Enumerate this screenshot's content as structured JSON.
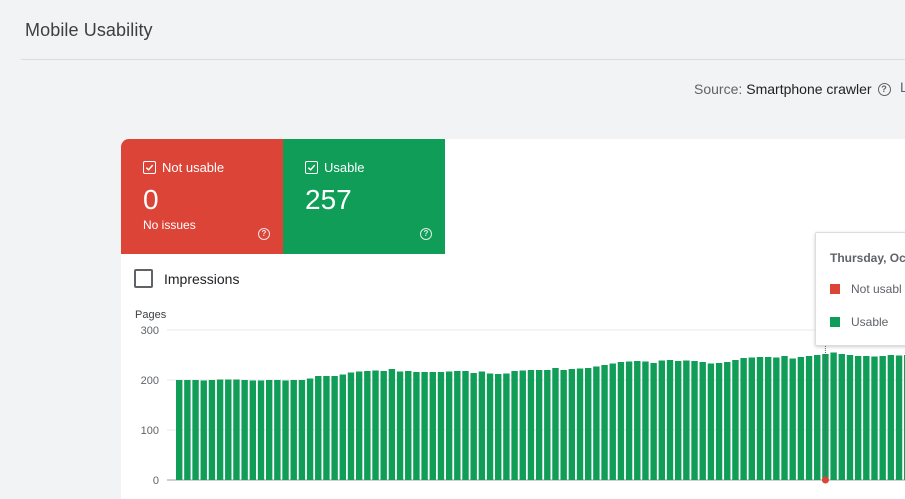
{
  "header": {
    "title": "Mobile Usability",
    "source_label": "Source:",
    "source_value": "Smartphone crawler",
    "help_icon": "help-circle-icon",
    "cut_off_text": "L"
  },
  "tiles": [
    {
      "label": "Not usable",
      "value": "0",
      "subtitle": "No issues",
      "color": "#db4437",
      "checked": true
    },
    {
      "label": "Usable",
      "value": "257",
      "color": "#0f9d58",
      "checked": true
    }
  ],
  "impressions": {
    "label": "Impressions",
    "checked": false
  },
  "tooltip": {
    "date": "Thursday, Oc",
    "rows": [
      {
        "label": "Not usabl",
        "color": "#db4437"
      },
      {
        "label": "Usable",
        "color": "#0f9d58"
      }
    ]
  },
  "chart_data": {
    "type": "bar",
    "ylabel": "Pages",
    "ylim": [
      0,
      300
    ],
    "yticks": [
      0,
      100,
      200,
      300
    ],
    "series": [
      {
        "name": "Usable",
        "color": "#0f9d58",
        "values": [
          200,
          200,
          200,
          199,
          200,
          201,
          201,
          201,
          200,
          199,
          199,
          200,
          200,
          199,
          200,
          200,
          203,
          208,
          208,
          208,
          211,
          215,
          217,
          218,
          219,
          218,
          222,
          217,
          218,
          216,
          216,
          216,
          216,
          217,
          218,
          218,
          214,
          217,
          213,
          212,
          213,
          218,
          219,
          220,
          220,
          220,
          224,
          220,
          222,
          223,
          224,
          227,
          230,
          233,
          236,
          237,
          238,
          237,
          234,
          239,
          240,
          238,
          239,
          238,
          236,
          233,
          234,
          236,
          240,
          244,
          245,
          246,
          246,
          245,
          248,
          243,
          246,
          248,
          250,
          252,
          255,
          252,
          250,
          248,
          248,
          247,
          248,
          250,
          249,
          250,
          252,
          257,
          256
        ]
      },
      {
        "name": "Not usable",
        "color": "#db4437",
        "values": [
          0,
          0,
          0,
          0,
          0,
          0,
          0,
          0,
          0,
          0,
          0,
          0,
          0,
          0,
          0,
          0,
          0,
          0,
          0,
          0,
          0,
          0,
          0,
          0,
          0,
          0,
          0,
          0,
          0,
          0,
          0,
          0,
          0,
          0,
          0,
          0,
          0,
          0,
          0,
          0,
          0,
          0,
          0,
          0,
          0,
          0,
          0,
          0,
          0,
          0,
          0,
          0,
          0,
          0,
          0,
          0,
          0,
          0,
          0,
          0,
          0,
          0,
          0,
          0,
          0,
          0,
          0,
          0,
          0,
          0,
          0,
          0,
          0,
          0,
          0,
          0,
          0,
          0,
          0,
          0,
          0,
          0,
          0,
          0,
          0,
          0,
          0,
          0,
          0,
          0,
          0,
          0,
          0
        ]
      }
    ],
    "highlighted_index": 79,
    "grid": true
  }
}
